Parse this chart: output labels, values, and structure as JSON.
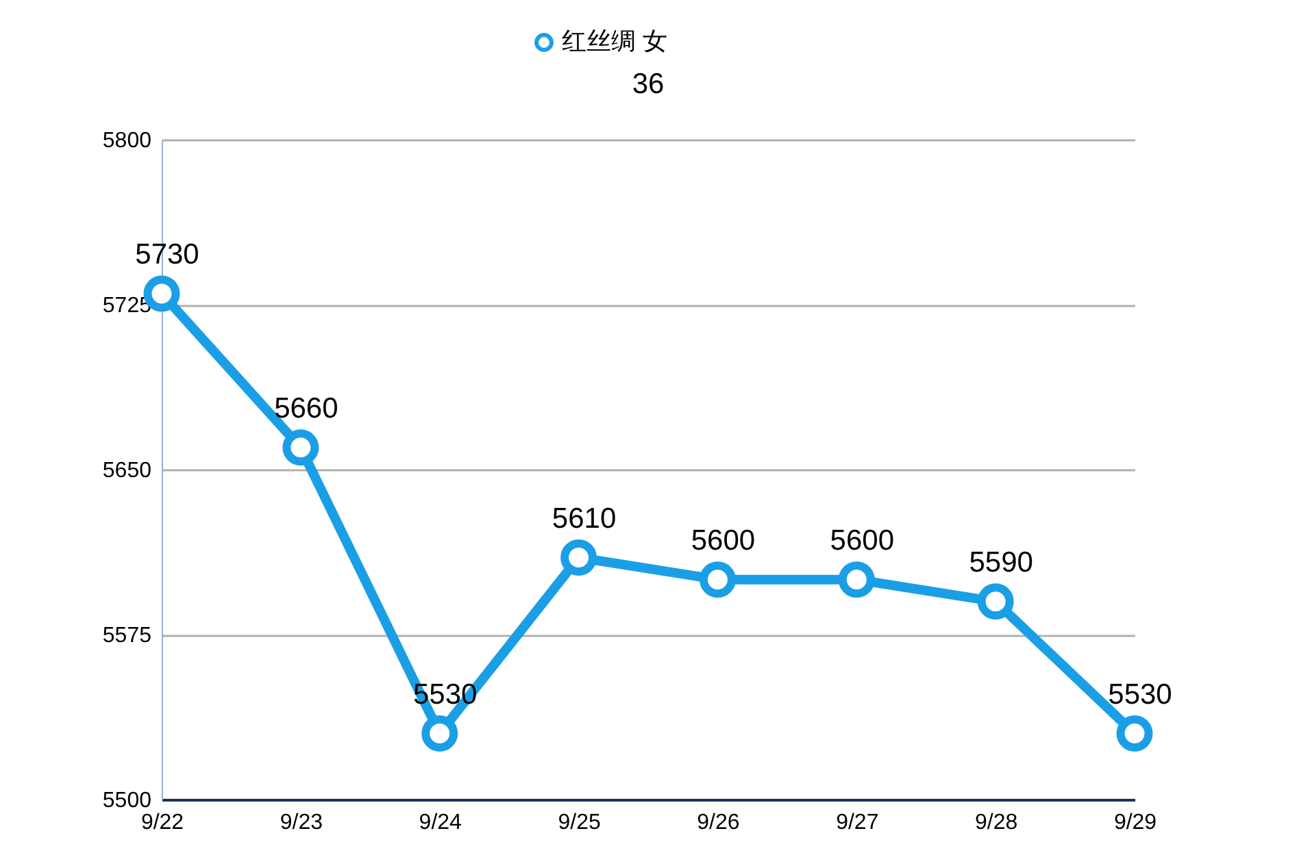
{
  "chart_data": {
    "type": "line",
    "title": "36",
    "categories": [
      "9/22",
      "9/23",
      "9/24",
      "9/25",
      "9/26",
      "9/27",
      "9/28",
      "9/29"
    ],
    "series": [
      {
        "name": "红丝绸 女",
        "color": "#1a9fe6",
        "values": [
          5730,
          5660,
          5530,
          5610,
          5600,
          5600,
          5590,
          5530
        ]
      }
    ],
    "ylim": [
      5500,
      5800
    ],
    "yticks": [
      5500,
      5575,
      5650,
      5725,
      5800
    ],
    "grid": "y",
    "legend": "top",
    "marker": "circle",
    "line_style": "solid",
    "data_labels": true
  }
}
